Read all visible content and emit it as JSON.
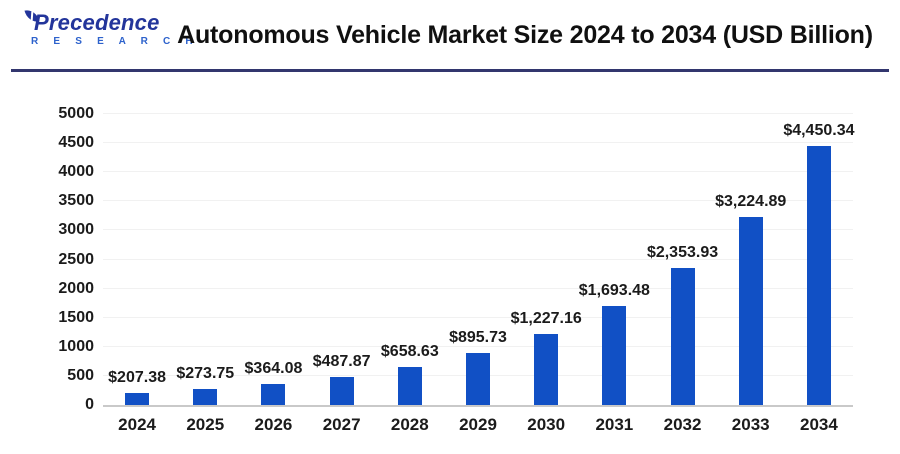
{
  "header": {
    "logo": {
      "name": "Precedence",
      "subtext": "R E S E A R C H"
    },
    "title": "Autonomous Vehicle Market Size 2024 to 2034 (USD Billion)"
  },
  "colors": {
    "bar": "#1150c5",
    "header_rule": "#32366e",
    "grid": "#f1f1f1",
    "axis_line": "#c9c9c9",
    "text": "#1b1b1b",
    "logo_dark": "#23359b",
    "logo_light": "#2d62cc"
  },
  "chart_data": {
    "type": "bar",
    "title": "Autonomous Vehicle Market Size 2024 to 2034 (USD Billion)",
    "unit": "USD Billion",
    "categories": [
      "2024",
      "2025",
      "2026",
      "2027",
      "2028",
      "2029",
      "2030",
      "2031",
      "2032",
      "2033",
      "2034"
    ],
    "values": [
      207.38,
      273.75,
      364.08,
      487.87,
      658.63,
      895.73,
      1227.16,
      1693.48,
      2353.93,
      3224.89,
      4450.34
    ],
    "value_labels": [
      "$207.38",
      "$273.75",
      "$364.08",
      "$487.87",
      "$658.63",
      "$895.73",
      "$1,227.16",
      "$1,693.48",
      "$2,353.93",
      "$3,224.89",
      "$4,450.34"
    ],
    "xlabel": "",
    "ylabel": "",
    "ylim": [
      0,
      5000
    ],
    "yticks": [
      0,
      500,
      1000,
      1500,
      2000,
      2500,
      3000,
      3500,
      4000,
      4500,
      5000
    ],
    "ytick_labels": [
      "0",
      "500",
      "1000",
      "1500",
      "2000",
      "2500",
      "3000",
      "3500",
      "4000",
      "4500",
      "5000"
    ],
    "grid": "horizontal",
    "legend": "none"
  }
}
